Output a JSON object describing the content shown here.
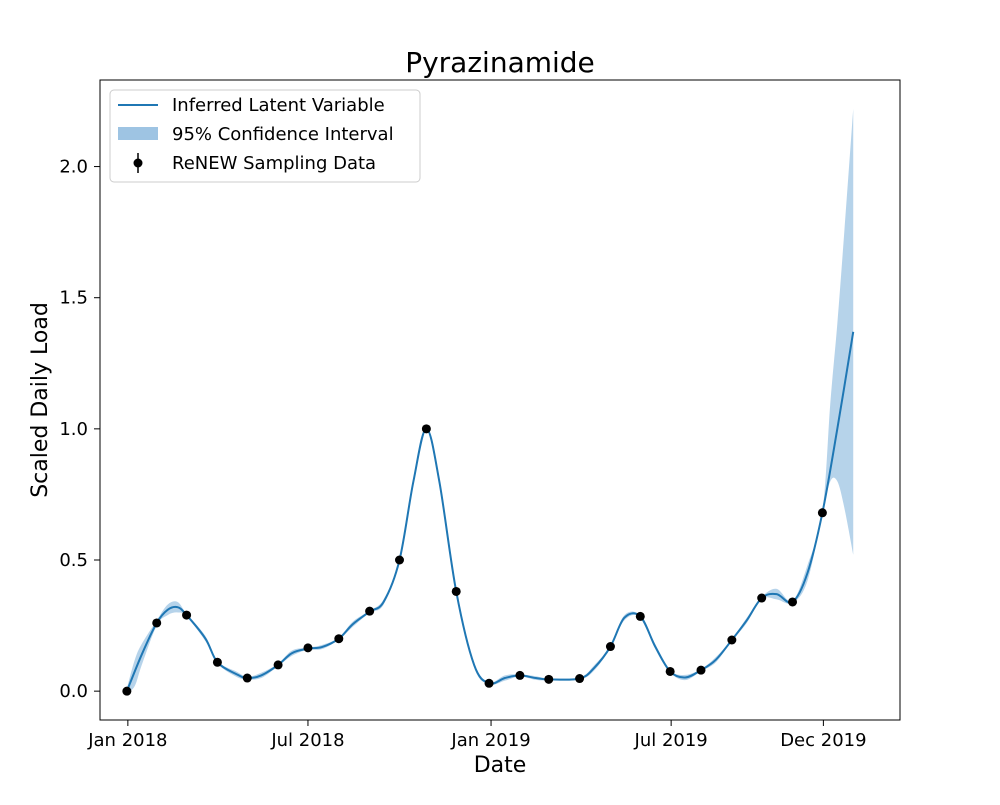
{
  "chart_data": {
    "type": "line",
    "title": "Pyrazinamide",
    "xlabel": "Date",
    "ylabel": "Scaled Daily Load",
    "x_type": "date",
    "xlim": [
      "2017-12-04",
      "2020-02-16"
    ],
    "ylim": [
      -0.11,
      2.33
    ],
    "x_ticks": [
      {
        "date": "2018-01-01",
        "label": "Jan 2018"
      },
      {
        "date": "2018-07-01",
        "label": "Jul 2018"
      },
      {
        "date": "2019-01-01",
        "label": "Jan 2019"
      },
      {
        "date": "2019-07-01",
        "label": "Jul 2019"
      },
      {
        "date": "2019-12-01",
        "label": "Dec 2019"
      }
    ],
    "y_ticks": [
      {
        "value": 0.0,
        "label": "0.0"
      },
      {
        "value": 0.5,
        "label": "0.5"
      },
      {
        "value": 1.0,
        "label": "1.0"
      },
      {
        "value": 1.5,
        "label": "1.5"
      },
      {
        "value": 2.0,
        "label": "2.0"
      }
    ],
    "grid": false,
    "legend": {
      "placement": "top-left",
      "entries": [
        {
          "label": "Inferred Latent Variable",
          "kind": "line"
        },
        {
          "label": "95% Confidence Interval",
          "kind": "band"
        },
        {
          "label": "ReNEW Sampling Data",
          "kind": "errorbar-point"
        }
      ]
    },
    "colors": {
      "line": "#1f77b4",
      "band": "#9ec4e3",
      "points": "#000000"
    },
    "series": [
      {
        "name": "Inferred Latent Variable",
        "kind": "line",
        "points": [
          [
            "2017-12-31",
            0.0
          ],
          [
            "2018-01-15",
            0.14
          ],
          [
            "2018-01-30",
            0.26
          ],
          [
            "2018-02-10",
            0.31
          ],
          [
            "2018-02-20",
            0.32
          ],
          [
            "2018-03-01",
            0.29
          ],
          [
            "2018-03-20",
            0.2
          ],
          [
            "2018-04-01",
            0.11
          ],
          [
            "2018-04-20",
            0.065
          ],
          [
            "2018-05-01",
            0.05
          ],
          [
            "2018-05-15",
            0.06
          ],
          [
            "2018-06-01",
            0.1
          ],
          [
            "2018-06-15",
            0.145
          ],
          [
            "2018-07-01",
            0.162
          ],
          [
            "2018-07-15",
            0.168
          ],
          [
            "2018-08-01",
            0.2
          ],
          [
            "2018-08-15",
            0.255
          ],
          [
            "2018-09-01",
            0.303
          ],
          [
            "2018-09-15",
            0.34
          ],
          [
            "2018-10-01",
            0.5
          ],
          [
            "2018-10-15",
            0.8
          ],
          [
            "2018-10-28",
            1.0
          ],
          [
            "2018-11-10",
            0.8
          ],
          [
            "2018-11-27",
            0.38
          ],
          [
            "2018-12-15",
            0.1
          ],
          [
            "2018-12-30",
            0.03
          ],
          [
            "2019-01-15",
            0.05
          ],
          [
            "2019-01-30",
            0.06
          ],
          [
            "2019-02-15",
            0.05
          ],
          [
            "2019-02-28",
            0.045
          ],
          [
            "2019-03-31",
            0.048
          ],
          [
            "2019-04-15",
            0.09
          ],
          [
            "2019-05-01",
            0.17
          ],
          [
            "2019-05-15",
            0.28
          ],
          [
            "2019-05-31",
            0.285
          ],
          [
            "2019-06-15",
            0.17
          ],
          [
            "2019-06-30",
            0.075
          ],
          [
            "2019-07-15",
            0.052
          ],
          [
            "2019-07-31",
            0.08
          ],
          [
            "2019-08-15",
            0.12
          ],
          [
            "2019-08-31",
            0.195
          ],
          [
            "2019-09-15",
            0.27
          ],
          [
            "2019-09-30",
            0.355
          ],
          [
            "2019-10-15",
            0.37
          ],
          [
            "2019-10-31",
            0.34
          ],
          [
            "2019-11-15",
            0.45
          ],
          [
            "2019-11-30",
            0.68
          ],
          [
            "2019-12-15",
            1.0
          ],
          [
            "2019-12-31",
            1.37
          ]
        ]
      },
      {
        "name": "95% Confidence Interval",
        "kind": "band",
        "points": [
          [
            "2017-12-31",
            -0.01,
            0.01
          ],
          [
            "2018-01-08",
            0.02,
            0.12
          ],
          [
            "2018-01-15",
            0.1,
            0.18
          ],
          [
            "2018-01-30",
            0.25,
            0.27
          ],
          [
            "2018-02-10",
            0.29,
            0.33
          ],
          [
            "2018-02-20",
            0.3,
            0.34
          ],
          [
            "2018-03-01",
            0.285,
            0.295
          ],
          [
            "2018-03-20",
            0.19,
            0.21
          ],
          [
            "2018-04-01",
            0.105,
            0.115
          ],
          [
            "2018-04-20",
            0.055,
            0.075
          ],
          [
            "2018-05-01",
            0.045,
            0.055
          ],
          [
            "2018-05-15",
            0.05,
            0.07
          ],
          [
            "2018-06-01",
            0.095,
            0.105
          ],
          [
            "2018-06-15",
            0.135,
            0.155
          ],
          [
            "2018-07-01",
            0.158,
            0.166
          ],
          [
            "2018-07-15",
            0.16,
            0.176
          ],
          [
            "2018-08-01",
            0.196,
            0.204
          ],
          [
            "2018-08-15",
            0.245,
            0.265
          ],
          [
            "2018-09-01",
            0.299,
            0.307
          ],
          [
            "2018-09-15",
            0.33,
            0.35
          ],
          [
            "2018-10-01",
            0.496,
            0.504
          ],
          [
            "2018-10-15",
            0.79,
            0.81
          ],
          [
            "2018-10-28",
            0.996,
            1.004
          ],
          [
            "2018-11-10",
            0.79,
            0.81
          ],
          [
            "2018-11-27",
            0.376,
            0.384
          ],
          [
            "2018-12-15",
            0.09,
            0.11
          ],
          [
            "2018-12-30",
            0.026,
            0.034
          ],
          [
            "2019-01-15",
            0.04,
            0.06
          ],
          [
            "2019-01-30",
            0.056,
            0.064
          ],
          [
            "2019-02-15",
            0.043,
            0.057
          ],
          [
            "2019-02-28",
            0.041,
            0.049
          ],
          [
            "2019-03-31",
            0.044,
            0.052
          ],
          [
            "2019-04-15",
            0.08,
            0.1
          ],
          [
            "2019-05-01",
            0.166,
            0.174
          ],
          [
            "2019-05-15",
            0.27,
            0.29
          ],
          [
            "2019-05-31",
            0.281,
            0.289
          ],
          [
            "2019-06-15",
            0.16,
            0.18
          ],
          [
            "2019-06-30",
            0.071,
            0.079
          ],
          [
            "2019-07-15",
            0.042,
            0.062
          ],
          [
            "2019-07-31",
            0.076,
            0.084
          ],
          [
            "2019-08-15",
            0.11,
            0.13
          ],
          [
            "2019-08-31",
            0.191,
            0.199
          ],
          [
            "2019-09-15",
            0.26,
            0.28
          ],
          [
            "2019-09-30",
            0.351,
            0.359
          ],
          [
            "2019-10-15",
            0.35,
            0.39
          ],
          [
            "2019-10-31",
            0.336,
            0.344
          ],
          [
            "2019-11-15",
            0.42,
            0.48
          ],
          [
            "2019-11-30",
            0.676,
            0.684
          ],
          [
            "2019-12-08",
            0.8,
            1.1
          ],
          [
            "2019-12-15",
            0.8,
            1.4
          ],
          [
            "2019-12-22",
            0.7,
            1.75
          ],
          [
            "2019-12-31",
            0.52,
            2.22
          ]
        ]
      },
      {
        "name": "ReNEW Sampling Data",
        "kind": "scatter",
        "points": [
          [
            "2017-12-31",
            0.0
          ],
          [
            "2018-01-30",
            0.26
          ],
          [
            "2018-03-01",
            0.29
          ],
          [
            "2018-04-01",
            0.11
          ],
          [
            "2018-05-01",
            0.05
          ],
          [
            "2018-06-01",
            0.1
          ],
          [
            "2018-07-01",
            0.165
          ],
          [
            "2018-08-01",
            0.2
          ],
          [
            "2018-09-01",
            0.305
          ],
          [
            "2018-10-01",
            0.5
          ],
          [
            "2018-10-28",
            1.0
          ],
          [
            "2018-11-27",
            0.38
          ],
          [
            "2018-12-30",
            0.03
          ],
          [
            "2019-01-30",
            0.06
          ],
          [
            "2019-02-28",
            0.045
          ],
          [
            "2019-03-31",
            0.048
          ],
          [
            "2019-05-01",
            0.17
          ],
          [
            "2019-05-31",
            0.285
          ],
          [
            "2019-06-30",
            0.075
          ],
          [
            "2019-07-31",
            0.08
          ],
          [
            "2019-08-31",
            0.195
          ],
          [
            "2019-09-30",
            0.355
          ],
          [
            "2019-10-31",
            0.34
          ],
          [
            "2019-11-30",
            0.68
          ]
        ]
      }
    ]
  }
}
